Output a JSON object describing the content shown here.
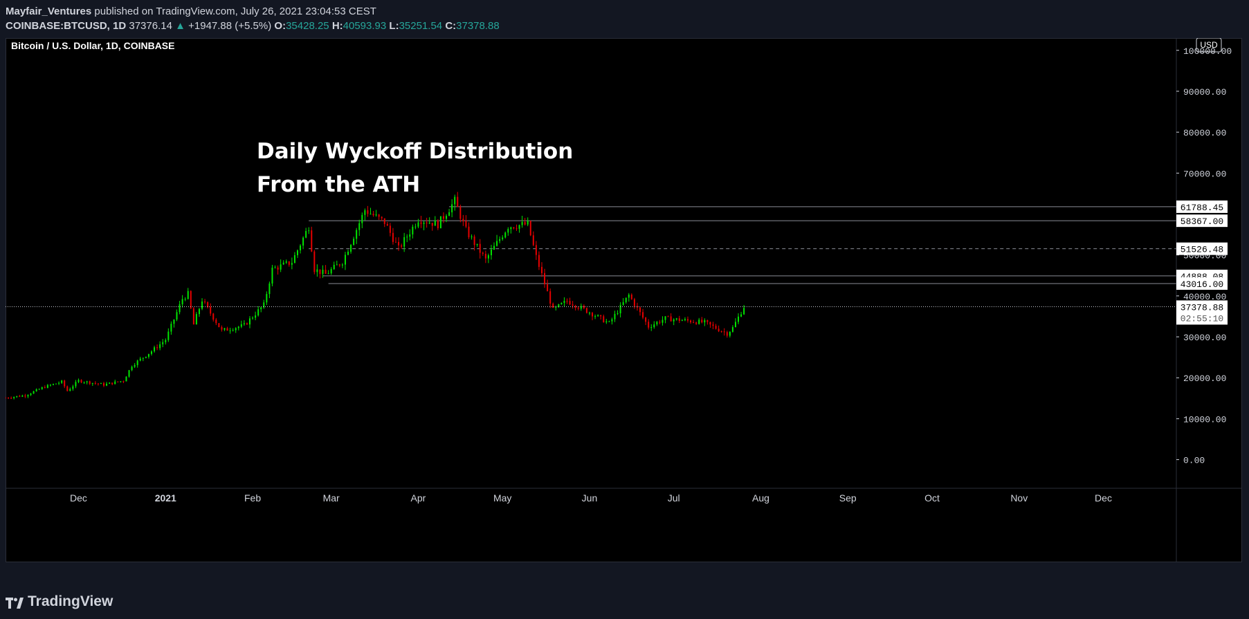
{
  "header": {
    "author": "Mayfair_Ventures",
    "published": " published on TradingView.com, July 26, 2021 23:04:53 CEST",
    "symbol": "COINBASE:BTCUSD, 1D",
    "last": "37376.14",
    "up_arrow": "▲",
    "change": "+1947.88 (+5.5%)",
    "o_label": "O:",
    "o": "35428.25",
    "h_label": "H:",
    "h": "40593.93",
    "l_label": "L:",
    "l": "35251.54",
    "c_label": "C:",
    "c": "37378.88"
  },
  "footer": {
    "brand": "TradingView"
  },
  "colors": {
    "up": "#26a69a",
    "candle_up": "#00e600",
    "candle_down": "#e60000",
    "bg": "#000000",
    "page": "#131722",
    "text": "#d1d4dc"
  },
  "chart_data": {
    "type": "candlestick",
    "legend_title": "Bitcoin / U.S. Dollar, 1D, COINBASE",
    "currency_label": "USD",
    "annotation_lines": [
      "Daily Wyckoff Distribution",
      "From the ATH"
    ],
    "ylim": [
      -7000,
      103000
    ],
    "y_ticks": [
      "100000.00",
      "90000.00",
      "80000.00",
      "70000.00",
      "50000.00",
      "40000.00",
      "30000.00",
      "20000.00",
      "10000.00",
      "0.00"
    ],
    "y_tick_values": [
      100000,
      90000,
      80000,
      70000,
      50000,
      40000,
      30000,
      20000,
      10000,
      0
    ],
    "x_labels": [
      "Dec",
      "2021",
      "Feb",
      "Mar",
      "Apr",
      "May",
      "Jun",
      "Jul",
      "Aug",
      "Sep",
      "Oct",
      "Nov",
      "Dec"
    ],
    "x_label_dates": [
      "2020-12-01",
      "2021-01-01",
      "2021-02-01",
      "2021-03-01",
      "2021-04-01",
      "2021-05-01",
      "2021-06-01",
      "2021-07-01",
      "2021-08-01",
      "2021-09-01",
      "2021-10-01",
      "2021-11-01",
      "2021-12-01"
    ],
    "x_range": [
      "2020-11-05",
      "2021-12-27"
    ],
    "levels": [
      {
        "label": "61788.45",
        "value": 61788.45,
        "style": "solid",
        "from": "2021-04-12"
      },
      {
        "label": "58367.00",
        "value": 58367.0,
        "style": "solid",
        "from": "2021-02-21"
      },
      {
        "label": "51526.48",
        "value": 51526.48,
        "style": "dashed",
        "from": "2021-02-21"
      },
      {
        "label": "44888.08",
        "value": 44888.08,
        "style": "solid",
        "from": "2021-02-26"
      },
      {
        "label": "43016.00",
        "value": 43016.0,
        "style": "solid",
        "from": "2021-02-28"
      }
    ],
    "current_price": {
      "label": "37378.88",
      "value": 37378.88,
      "countdown": "02:55:10"
    },
    "path": [
      [
        "2020-11-05",
        15100
      ],
      [
        "2020-11-12",
        15700
      ],
      [
        "2020-11-19",
        17800
      ],
      [
        "2020-11-25",
        19000
      ],
      [
        "2020-11-27",
        16800
      ],
      [
        "2020-12-01",
        19300
      ],
      [
        "2020-12-10",
        18300
      ],
      [
        "2020-12-17",
        19300
      ],
      [
        "2020-12-20",
        23000
      ],
      [
        "2020-12-27",
        26500
      ],
      [
        "2021-01-01",
        29300
      ],
      [
        "2021-01-07",
        39300
      ],
      [
        "2021-01-09",
        40500
      ],
      [
        "2021-01-11",
        33000
      ],
      [
        "2021-01-14",
        39000
      ],
      [
        "2021-01-21",
        31500
      ],
      [
        "2021-01-29",
        32800
      ],
      [
        "2021-02-05",
        37800
      ],
      [
        "2021-02-08",
        46500
      ],
      [
        "2021-02-15",
        48300
      ],
      [
        "2021-02-21",
        57000
      ],
      [
        "2021-02-23",
        46500
      ],
      [
        "2021-02-27",
        45300
      ],
      [
        "2021-03-05",
        48400
      ],
      [
        "2021-03-13",
        61000
      ],
      [
        "2021-03-20",
        58000
      ],
      [
        "2021-03-25",
        51500
      ],
      [
        "2021-04-01",
        58800
      ],
      [
        "2021-04-08",
        57500
      ],
      [
        "2021-04-14",
        63200
      ],
      [
        "2021-04-18",
        56000
      ],
      [
        "2021-04-25",
        48800
      ],
      [
        "2021-05-03",
        57000
      ],
      [
        "2021-05-10",
        57500
      ],
      [
        "2021-05-13",
        49500
      ],
      [
        "2021-05-19",
        36500
      ],
      [
        "2021-05-24",
        38800
      ],
      [
        "2021-06-01",
        36000
      ],
      [
        "2021-06-08",
        33300
      ],
      [
        "2021-06-15",
        40200
      ],
      [
        "2021-06-22",
        32500
      ],
      [
        "2021-06-28",
        34500
      ],
      [
        "2021-07-05",
        34000
      ],
      [
        "2021-07-12",
        33500
      ],
      [
        "2021-07-20",
        30800
      ],
      [
        "2021-07-22",
        32200
      ],
      [
        "2021-07-26",
        37378
      ]
    ]
  }
}
